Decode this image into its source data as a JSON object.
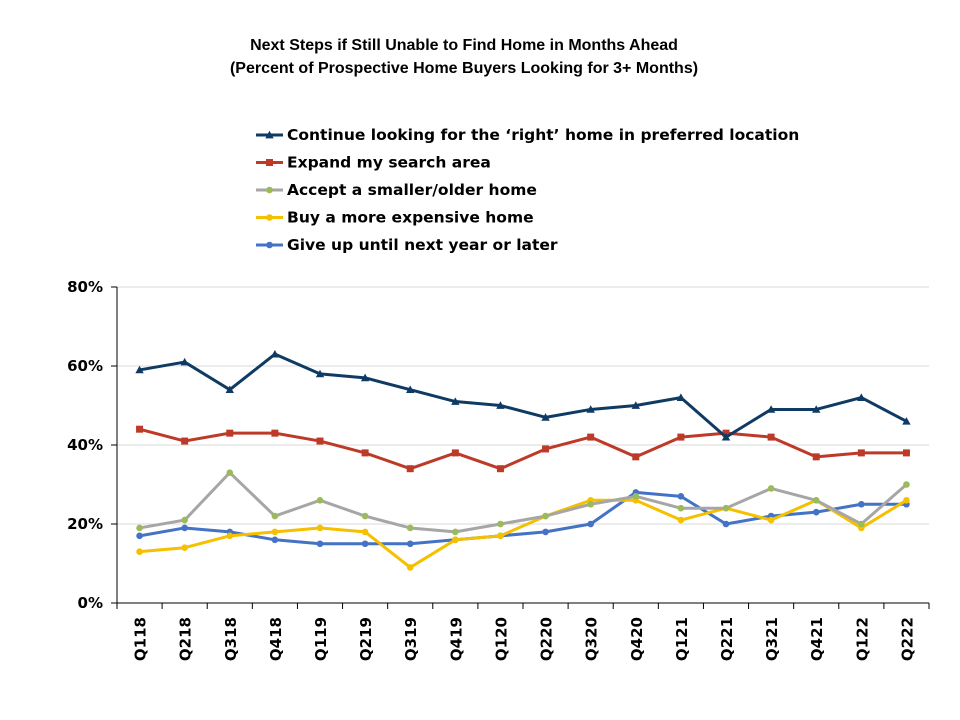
{
  "chart_data": {
    "type": "line",
    "title": "Next Steps if Still Unable to Find Home in Months Ahead",
    "subtitle": "(Percent of Prospective Home Buyers Looking for 3+ Months)",
    "xlabel": "",
    "ylabel": "",
    "ylim": [
      0,
      80
    ],
    "yticks": [
      "0%",
      "20%",
      "40%",
      "60%",
      "80%"
    ],
    "ytick_values": [
      0,
      20,
      40,
      60,
      80
    ],
    "grid": true,
    "legend_position": "top",
    "categories": [
      "Q118",
      "Q218",
      "Q318",
      "Q418",
      "Q119",
      "Q219",
      "Q319",
      "Q419",
      "Q120",
      "Q220",
      "Q320",
      "Q420",
      "Q121",
      "Q221",
      "Q321",
      "Q421",
      "Q122",
      "Q222"
    ],
    "series": [
      {
        "name": "Continue looking for the ‘right’ home in preferred location",
        "color": "#0f3a63",
        "marker": "triangle",
        "values": [
          59,
          61,
          54,
          63,
          58,
          57,
          54,
          51,
          50,
          47,
          49,
          50,
          52,
          42,
          49,
          49,
          52,
          46
        ]
      },
      {
        "name": "Expand my search area",
        "color": "#be3a28",
        "marker": "square",
        "values": [
          44,
          41,
          43,
          43,
          41,
          38,
          34,
          38,
          34,
          39,
          42,
          37,
          42,
          43,
          42,
          37,
          38,
          38
        ]
      },
      {
        "name": "Accept a smaller/older home",
        "color": "#a6a6a6",
        "marker_color": "#9bbb59",
        "marker": "circle",
        "values": [
          19,
          21,
          33,
          22,
          26,
          22,
          19,
          18,
          20,
          22,
          25,
          27,
          24,
          24,
          29,
          26,
          20,
          30
        ]
      },
      {
        "name": "Buy a more expensive home",
        "color": "#f5c000",
        "marker": "circle",
        "values": [
          13,
          14,
          17,
          18,
          19,
          18,
          9,
          16,
          17,
          22,
          26,
          26,
          21,
          24,
          21,
          26,
          19,
          26
        ]
      },
      {
        "name": "Give up until next year or later",
        "color": "#4472c4",
        "marker": "circle",
        "values": [
          17,
          19,
          18,
          16,
          15,
          15,
          15,
          16,
          17,
          18,
          20,
          28,
          27,
          20,
          22,
          23,
          25,
          25
        ]
      }
    ]
  }
}
